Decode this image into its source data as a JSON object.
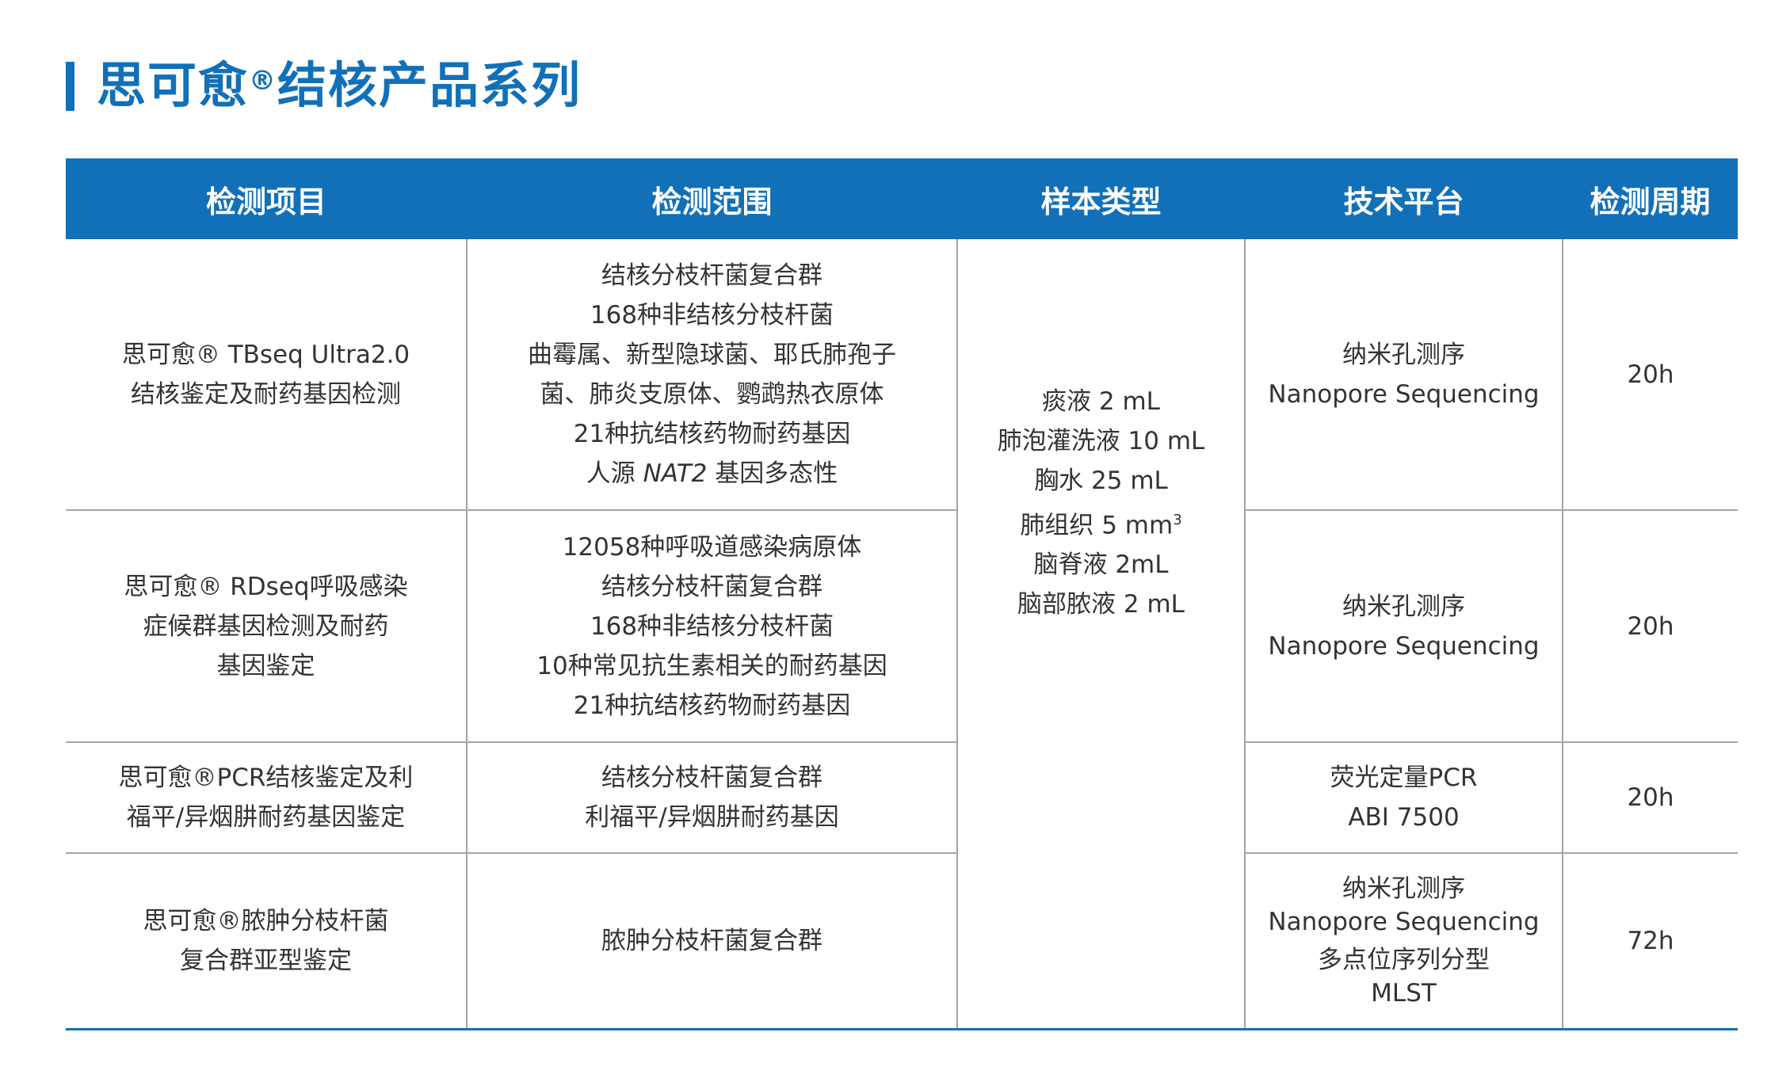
{
  "title": {
    "main": "思可愈",
    "reg": "®",
    "rest": "结核产品系列"
  },
  "colors": {
    "accent": "#1270b8",
    "text": "#333333",
    "grid": "#a5a5a5"
  },
  "table": {
    "headers": [
      "检测项目",
      "检测范围",
      "样本类型",
      "技术平台",
      "检测周期"
    ],
    "sample_types": [
      "痰液 2 mL",
      "肺泡灌洗液 10 mL",
      "胸水 25 mL",
      "肺组织 5 mm",
      "脑脊液 2mL",
      "脑部脓液 2 mL"
    ],
    "sample_superscript": "3",
    "rows": [
      {
        "item_lines": [
          "思可愈® TBseq Ultra2.0",
          "结核鉴定及耐药基因检测"
        ],
        "scope_lines": [
          "结核分枝杆菌复合群",
          "168种非结核分枝杆菌",
          "曲霉属、新型隐球菌、耶氏肺孢子",
          "菌、肺炎支原体、鹦鹉热衣原体",
          "21种抗结核药物耐药基因"
        ],
        "scope_last": {
          "pre": "人源 ",
          "italic": "NAT2",
          "post": " 基因多态性"
        },
        "platform_lines": [
          "纳米孔测序",
          "Nanopore Sequencing"
        ],
        "period": "20h"
      },
      {
        "item_lines": [
          "思可愈® RDseq呼吸感染",
          "症候群基因检测及耐药",
          "基因鉴定"
        ],
        "scope_lines": [
          "12058种呼吸道感染病原体",
          "结核分枝杆菌复合群",
          "168种非结核分枝杆菌",
          "10种常见抗生素相关的耐药基因",
          "21种抗结核药物耐药基因"
        ],
        "platform_lines": [
          "纳米孔测序",
          "Nanopore Sequencing"
        ],
        "period": "20h"
      },
      {
        "item_lines": [
          "思可愈®PCR结核鉴定及利",
          "福平/异烟肼耐药基因鉴定"
        ],
        "scope_lines": [
          "结核分枝杆菌复合群",
          "利福平/异烟肼耐药基因"
        ],
        "platform_lines": [
          "荧光定量PCR",
          "ABI 7500"
        ],
        "period": "20h"
      },
      {
        "item_lines": [
          "思可愈®脓肿分枝杆菌",
          "复合群亚型鉴定"
        ],
        "scope_lines": [
          "脓肿分枝杆菌复合群"
        ],
        "platform_lines": [
          "纳米孔测序",
          "Nanopore Sequencing",
          "多点位序列分型",
          "MLST"
        ],
        "period": "72h"
      }
    ]
  }
}
